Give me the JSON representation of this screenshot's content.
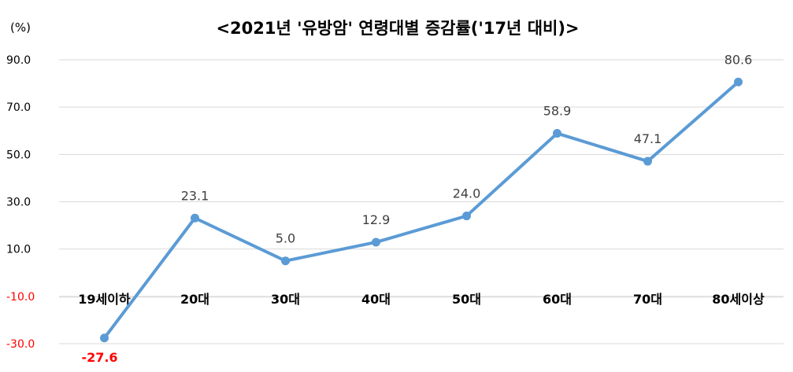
{
  "chart_data": {
    "type": "line",
    "title": "<2021년 '유방암' 연령대별 증감률('17년 대비)>",
    "unit_label": "(%)",
    "categories": [
      "19세이하",
      "20대",
      "30대",
      "40대",
      "50대",
      "60대",
      "70대",
      "80세이상"
    ],
    "series": [
      {
        "values": [
          -27.6,
          23.1,
          5.0,
          12.9,
          24.0,
          58.9,
          47.1,
          80.6
        ],
        "data_labels": [
          "-27.6",
          "23.1",
          "5.0",
          "12.9",
          "24.0",
          "58.9",
          "47.1",
          "80.6"
        ]
      }
    ],
    "y_ticks": [
      90,
      70,
      50,
      30,
      10,
      -10,
      -30
    ],
    "y_tick_labels": [
      "90.0",
      "70.0",
      "50.0",
      "30.0",
      "10.0",
      "-10.0",
      "-30.0"
    ],
    "ylim": [
      -30,
      90
    ],
    "grid": true,
    "colors": {
      "line": "#5b9bd5",
      "negative_label": "#ff0000",
      "grid": "#d9d9d9",
      "text": "#000000"
    }
  }
}
